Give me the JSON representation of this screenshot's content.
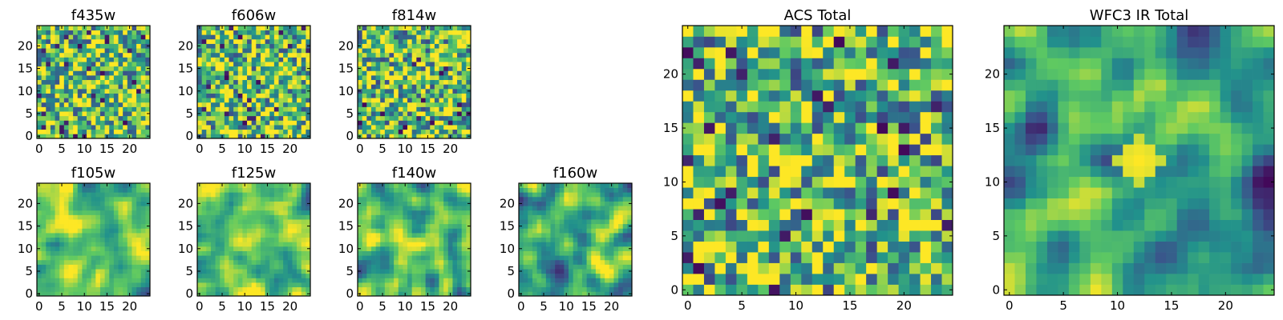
{
  "colormap": "viridis",
  "colors": {
    "cmap_stops": [
      "#440154",
      "#3b528b",
      "#21918c",
      "#5ec962",
      "#fde725"
    ],
    "frame": "#000000"
  },
  "chart_data": [
    {
      "type": "heatmap",
      "title": "f435w",
      "grid_size": [
        25,
        25
      ],
      "xlim": [
        0,
        24
      ],
      "ylim": [
        0,
        24
      ],
      "x_ticks": [
        "0",
        "5",
        "10",
        "15",
        "20"
      ],
      "y_ticks": [
        "0",
        "5",
        "10",
        "15",
        "20"
      ],
      "texture": "pixel noise",
      "mean_level": 0.72,
      "seed": 11
    },
    {
      "type": "heatmap",
      "title": "f606w",
      "grid_size": [
        25,
        25
      ],
      "xlim": [
        0,
        24
      ],
      "ylim": [
        0,
        24
      ],
      "x_ticks": [
        "0",
        "5",
        "10",
        "15",
        "20"
      ],
      "y_ticks": [
        "0",
        "5",
        "10",
        "15",
        "20"
      ],
      "texture": "pixel noise",
      "mean_level": 0.72,
      "seed": 23
    },
    {
      "type": "heatmap",
      "title": "f814w",
      "grid_size": [
        25,
        25
      ],
      "xlim": [
        0,
        24
      ],
      "ylim": [
        0,
        24
      ],
      "x_ticks": [
        "0",
        "5",
        "10",
        "15",
        "20"
      ],
      "y_ticks": [
        "0",
        "5",
        "10",
        "15",
        "20"
      ],
      "texture": "pixel noise",
      "mean_level": 0.7,
      "seed": 37
    },
    {
      "type": "heatmap",
      "title": "f105w",
      "grid_size": [
        25,
        25
      ],
      "xlim": [
        0,
        24
      ],
      "ylim": [
        0,
        24
      ],
      "x_ticks": [
        "0",
        "5",
        "10",
        "15",
        "20"
      ],
      "y_ticks": [
        "0",
        "5",
        "10",
        "15",
        "20"
      ],
      "texture": "smooth blobs",
      "mean_level": 0.7,
      "seed": 41
    },
    {
      "type": "heatmap",
      "title": "f125w",
      "grid_size": [
        25,
        25
      ],
      "xlim": [
        0,
        24
      ],
      "ylim": [
        0,
        24
      ],
      "x_ticks": [
        "0",
        "5",
        "10",
        "15",
        "20"
      ],
      "y_ticks": [
        "0",
        "5",
        "10",
        "15",
        "20"
      ],
      "texture": "smooth blobs",
      "mean_level": 0.72,
      "seed": 53
    },
    {
      "type": "heatmap",
      "title": "f140w",
      "grid_size": [
        25,
        25
      ],
      "xlim": [
        0,
        24
      ],
      "ylim": [
        0,
        24
      ],
      "x_ticks": [
        "0",
        "5",
        "10",
        "15",
        "20"
      ],
      "y_ticks": [
        "0",
        "5",
        "10",
        "15",
        "20"
      ],
      "texture": "smooth blobs",
      "mean_level": 0.7,
      "seed": 67
    },
    {
      "type": "heatmap",
      "title": "f160w",
      "grid_size": [
        25,
        25
      ],
      "xlim": [
        0,
        24
      ],
      "ylim": [
        0,
        24
      ],
      "x_ticks": [
        "0",
        "5",
        "10",
        "15",
        "20"
      ],
      "y_ticks": [
        "0",
        "5",
        "10",
        "15",
        "20"
      ],
      "texture": "smooth blobs",
      "mean_level": 0.62,
      "seed": 79
    },
    {
      "type": "heatmap",
      "title": "ACS Total",
      "grid_size": [
        25,
        25
      ],
      "xlim": [
        0,
        24
      ],
      "ylim": [
        0,
        24
      ],
      "x_ticks": [
        "0",
        "5",
        "10",
        "15",
        "20"
      ],
      "y_ticks": [
        "0",
        "5",
        "10",
        "15",
        "20"
      ],
      "texture": "pixel noise",
      "mean_level": 0.68,
      "seed": 97
    },
    {
      "type": "heatmap",
      "title": "WFC3 IR Total",
      "grid_size": [
        25,
        25
      ],
      "xlim": [
        0,
        24
      ],
      "ylim": [
        0,
        24
      ],
      "x_ticks": [
        "0",
        "5",
        "10",
        "15",
        "20"
      ],
      "y_ticks": [
        "0",
        "5",
        "10",
        "15",
        "20"
      ],
      "texture": "smooth blobs",
      "mean_level": 0.5,
      "seed": 113,
      "source_center": [
        12,
        12
      ],
      "source_level": 1.0
    }
  ]
}
